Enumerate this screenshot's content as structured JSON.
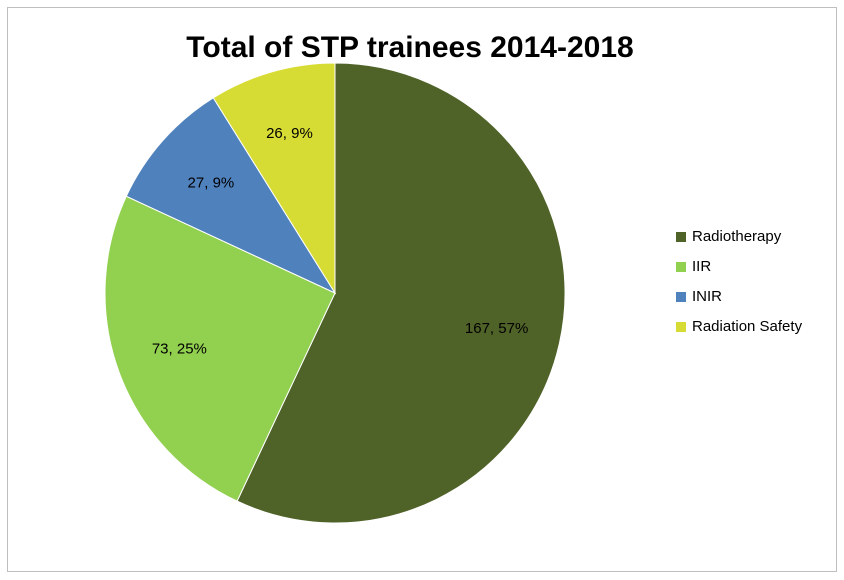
{
  "chart_data": {
    "type": "pie",
    "title": "Total of STP trainees 2014-2018",
    "categories": [
      "Radiotherapy",
      "IIR",
      "INIR",
      "Radiation Safety"
    ],
    "values": [
      167,
      73,
      27,
      26
    ],
    "value_labels": [
      "167, 57%",
      "73, 25%",
      "27, 9%",
      "26, 9%"
    ],
    "colors": [
      "#4f6228",
      "#92d050",
      "#4f81bd",
      "#d7dc35"
    ],
    "legend": "right"
  }
}
